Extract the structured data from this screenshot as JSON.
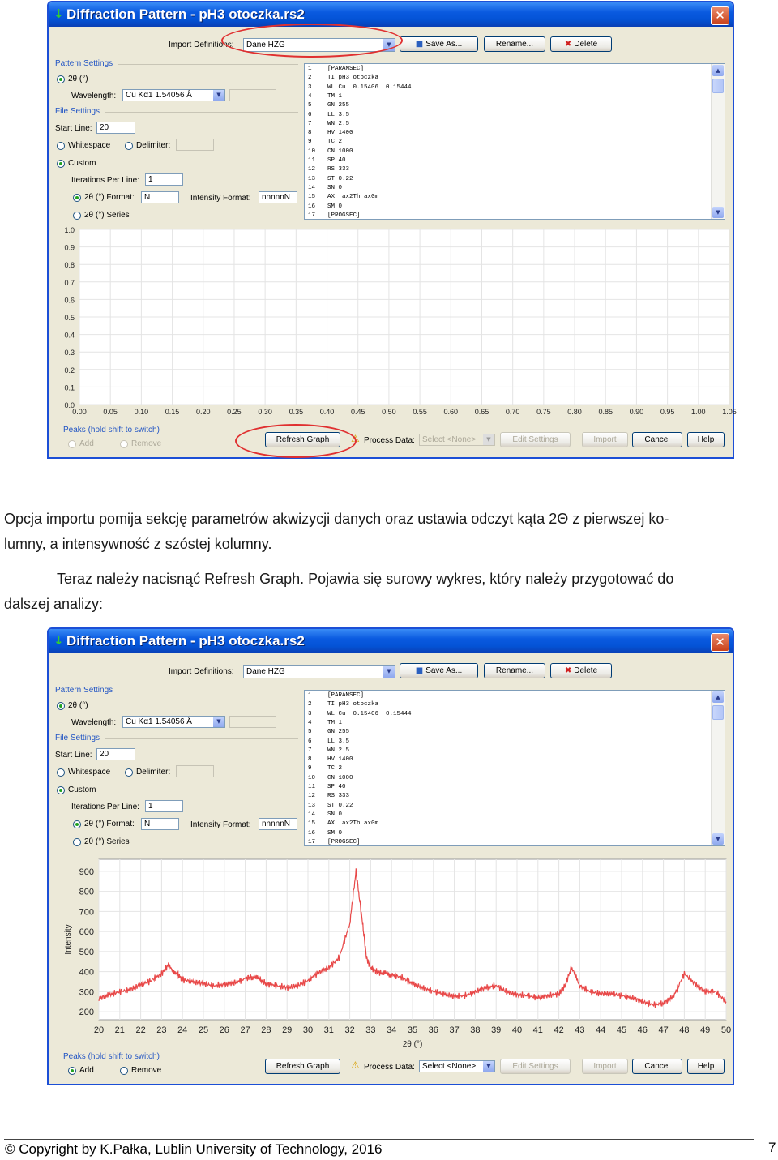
{
  "dialog": {
    "title": "Diffraction Pattern - pH3 otoczka.rs2",
    "import_label": "Import Definitions:",
    "import_value": "Dane HZG",
    "save_as": "Save As...",
    "rename": "Rename...",
    "delete": "Delete",
    "pattern_settings": "Pattern Settings",
    "two_theta": "2θ (°)",
    "wavelength_label": "Wavelength:",
    "wavelength_value": "Cu Kα1 1.54056 Å",
    "file_settings": "File Settings",
    "start_line_label": "Start Line:",
    "start_line_value": "20",
    "whitespace": "Whitespace",
    "delimiter": "Delimiter:",
    "custom": "Custom",
    "iterations_label": "Iterations Per Line:",
    "iterations_value": "1",
    "two_theta_format": "2θ (°) Format:",
    "two_theta_format_value": "N",
    "intensity_format_label": "Intensity Format:",
    "intensity_format_value": "nnnnnN",
    "two_theta_series": "2θ (°) Series",
    "listing": [
      {
        "n": "1",
        "t": "[PARAMSEC]"
      },
      {
        "n": "2",
        "t": "TI pH3 otoczka"
      },
      {
        "n": "3",
        "t": "WL Cu  0.15406  0.15444"
      },
      {
        "n": "4",
        "t": "TM 1"
      },
      {
        "n": "5",
        "t": "GN 255"
      },
      {
        "n": "6",
        "t": "LL 3.5"
      },
      {
        "n": "7",
        "t": "WN 2.5"
      },
      {
        "n": "8",
        "t": "HV 1400"
      },
      {
        "n": "9",
        "t": "TC 2"
      },
      {
        "n": "10",
        "t": "CN 1000"
      },
      {
        "n": "11",
        "t": "SP 40"
      },
      {
        "n": "12",
        "t": "RS 333"
      },
      {
        "n": "13",
        "t": "ST 0.22"
      },
      {
        "n": "14",
        "t": "SN 0"
      },
      {
        "n": "15",
        "t": "AX  ax2Th ax0m"
      },
      {
        "n": "16",
        "t": "SM 0"
      },
      {
        "n": "17",
        "t": "[PROGSEC]"
      }
    ],
    "peaks_label": "Peaks (hold shift to switch)",
    "add": "Add",
    "remove": "Remove",
    "refresh_graph": "Refresh Graph",
    "process_data_label": "Process Data:",
    "process_data_value": "Select <None>",
    "edit_settings": "Edit Settings",
    "import": "Import",
    "cancel": "Cancel",
    "help": "Help"
  },
  "chart_data": [
    {
      "type": "line",
      "title": "",
      "xlabel": "",
      "ylabel": "",
      "xlim": [
        0.0,
        1.05
      ],
      "ylim": [
        0.0,
        1.0
      ],
      "x_ticks": [
        "0.00",
        "0.05",
        "0.10",
        "0.15",
        "0.20",
        "0.25",
        "0.30",
        "0.35",
        "0.40",
        "0.45",
        "0.50",
        "0.55",
        "0.60",
        "0.65",
        "0.70",
        "0.75",
        "0.80",
        "0.85",
        "0.90",
        "0.95",
        "1.00",
        "1.05"
      ],
      "y_ticks": [
        "0.0",
        "0.1",
        "0.2",
        "0.3",
        "0.4",
        "0.5",
        "0.6",
        "0.7",
        "0.8",
        "0.9",
        "1.0"
      ],
      "grid": true,
      "series": []
    },
    {
      "type": "line",
      "title": "",
      "xlabel": "2θ (°)",
      "ylabel": "Intensity",
      "xlim": [
        20,
        50
      ],
      "ylim": [
        160,
        960
      ],
      "x_ticks": [
        "20",
        "21",
        "22",
        "23",
        "24",
        "25",
        "26",
        "27",
        "28",
        "29",
        "30",
        "31",
        "32",
        "33",
        "34",
        "35",
        "36",
        "37",
        "38",
        "39",
        "40",
        "41",
        "42",
        "43",
        "44",
        "45",
        "46",
        "47",
        "48",
        "49",
        "50"
      ],
      "y_ticks": [
        "200",
        "300",
        "400",
        "500",
        "600",
        "700",
        "800",
        "900"
      ],
      "grid": true,
      "series": [
        {
          "color": "#e84848",
          "x": [
            20,
            20.5,
            21,
            21.5,
            22,
            22.5,
            23,
            23.3,
            23.7,
            24,
            24.5,
            25,
            25.5,
            26,
            26.5,
            27,
            27.3,
            27.7,
            28,
            28.5,
            29,
            29.5,
            30,
            30.5,
            31,
            31.5,
            32,
            32.3,
            32.6,
            32.8,
            33,
            33.3,
            33.6,
            34,
            34.5,
            35,
            35.5,
            36,
            36.5,
            37,
            37.5,
            38,
            38.5,
            39,
            39.5,
            40,
            40.5,
            41,
            41.5,
            42,
            42.3,
            42.6,
            43,
            43.5,
            44,
            44.5,
            45,
            45.5,
            46,
            46.5,
            47,
            47.5,
            48,
            48.5,
            49,
            49.5,
            50
          ],
          "y": [
            265,
            285,
            300,
            310,
            335,
            355,
            390,
            430,
            395,
            360,
            350,
            340,
            330,
            335,
            345,
            365,
            375,
            360,
            340,
            330,
            320,
            330,
            355,
            395,
            420,
            470,
            640,
            900,
            650,
            470,
            420,
            400,
            390,
            385,
            370,
            340,
            320,
            300,
            290,
            275,
            280,
            300,
            320,
            330,
            300,
            285,
            280,
            270,
            280,
            290,
            330,
            420,
            330,
            300,
            290,
            290,
            280,
            270,
            250,
            235,
            240,
            280,
            390,
            340,
            300,
            300,
            250
          ]
        }
      ]
    }
  ],
  "paragraphs": {
    "p1_line1": "Opcja importu pomija sekcję parametrów akwizycji danych oraz ustawia odczyt kąta 2Θ z pierwszej ko-",
    "p1_line2": "lumny, a intensywność z szóstej kolumny.",
    "p2_line1": "Teraz należy nacisnąć Refresh Graph. Pojawia się surowy wykres, który należy przygotować do",
    "p2_line2": "dalszej analizy:"
  },
  "footer": {
    "copyright": "© Copyright by K.Pałka, Lublin University of Technology, 2016",
    "page_number": "7"
  },
  "colors": {
    "annotation": "#e03030",
    "series": "#e84848",
    "titlebar": "#0a5ae0"
  }
}
